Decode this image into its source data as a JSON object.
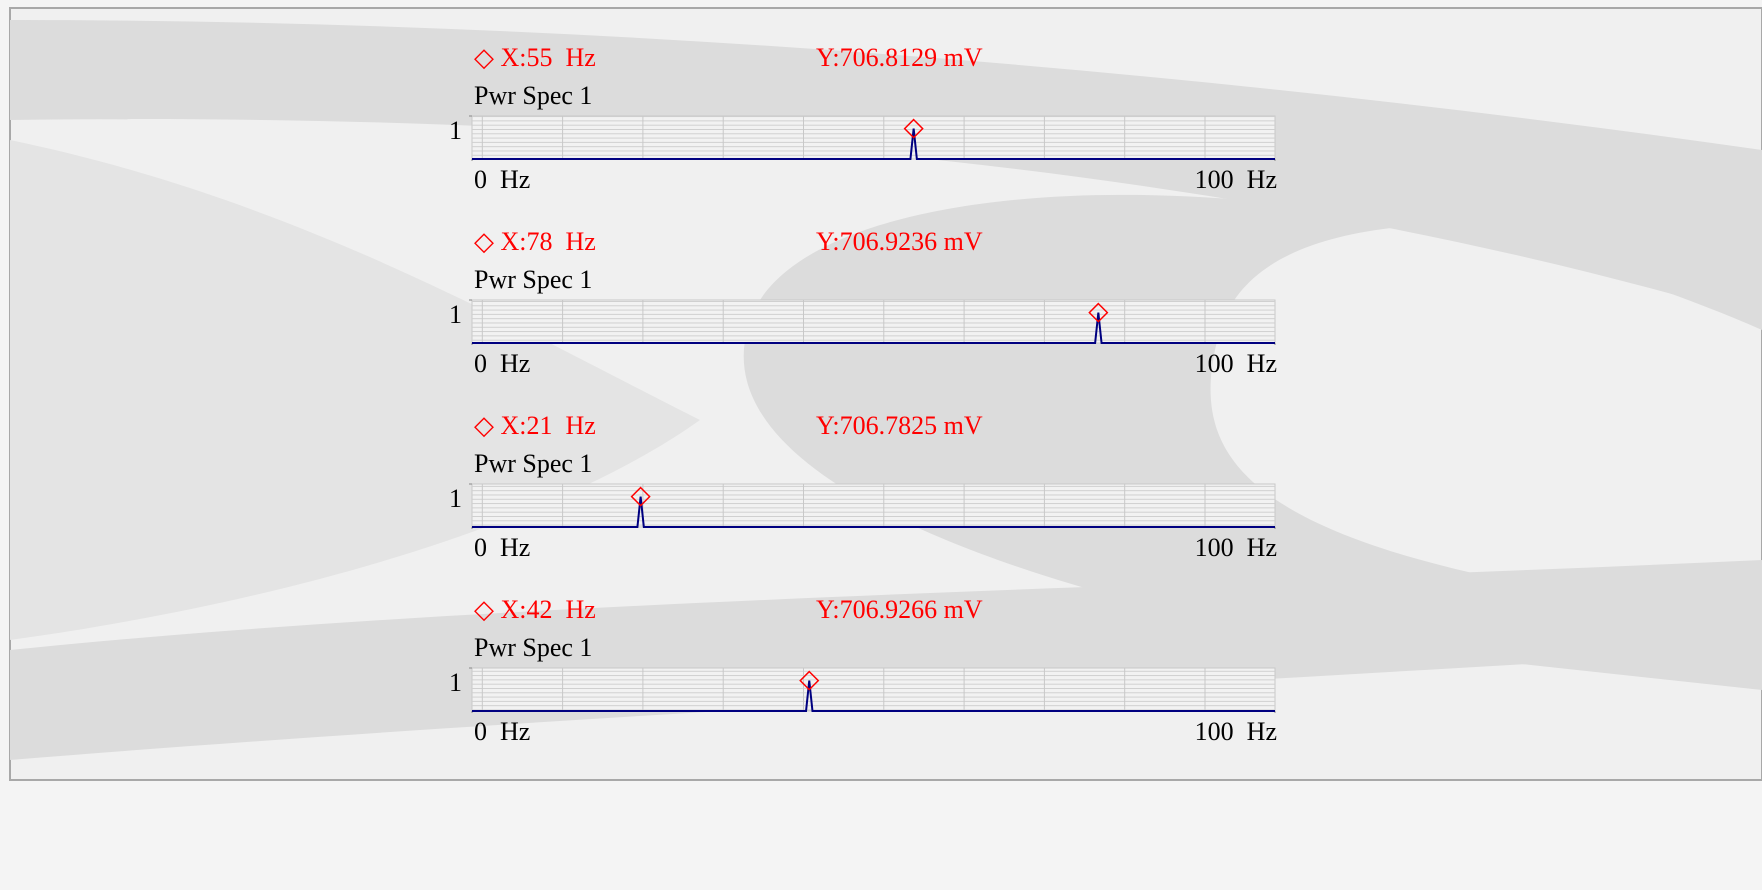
{
  "chart_data": [
    {
      "type": "line",
      "annotations": [
        "◇ X:55  Hz",
        "Y:706.8129 mV"
      ],
      "title": "Pwr Spec 1",
      "x": [
        0,
        54.6,
        55,
        55.4,
        100
      ],
      "values": [
        0,
        0,
        0.7068129,
        0,
        0
      ],
      "color": "#000080",
      "marker_color": "#ff0000",
      "xlim": [
        0,
        100
      ],
      "ylim": [
        0,
        1
      ],
      "xticks": [
        {
          "value": 0,
          "label": "0  Hz"
        },
        {
          "value": 100,
          "label": "100  Hz"
        }
      ],
      "yticks": [
        1
      ],
      "grid": true
    },
    {
      "type": "line",
      "annotations": [
        "◇ X:78  Hz",
        "Y:706.9236 mV"
      ],
      "title": "Pwr Spec 1",
      "x": [
        0,
        77.6,
        78,
        78.4,
        100
      ],
      "values": [
        0,
        0,
        0.7069236,
        0,
        0
      ],
      "color": "#000080",
      "marker_color": "#ff0000",
      "xlim": [
        0,
        100
      ],
      "ylim": [
        0,
        1
      ],
      "xticks": [
        {
          "value": 0,
          "label": "0  Hz"
        },
        {
          "value": 100,
          "label": "100  Hz"
        }
      ],
      "yticks": [
        1
      ],
      "grid": true
    },
    {
      "type": "line",
      "annotations": [
        "◇ X:21  Hz",
        "Y:706.7825 mV"
      ],
      "title": "Pwr Spec 1",
      "x": [
        0,
        20.6,
        21,
        21.4,
        100
      ],
      "values": [
        0,
        0,
        0.7067825,
        0,
        0
      ],
      "color": "#000080",
      "marker_color": "#ff0000",
      "xlim": [
        0,
        100
      ],
      "ylim": [
        0,
        1
      ],
      "xticks": [
        {
          "value": 0,
          "label": "0  Hz"
        },
        {
          "value": 100,
          "label": "100  Hz"
        }
      ],
      "yticks": [
        1
      ],
      "grid": true
    },
    {
      "type": "line",
      "annotations": [
        "◇ X:42  Hz",
        "Y:706.9266 mV"
      ],
      "title": "Pwr Spec 1",
      "x": [
        0,
        41.6,
        42,
        42.4,
        100
      ],
      "values": [
        0,
        0,
        0.7069266,
        0,
        0
      ],
      "color": "#000080",
      "marker_color": "#ff0000",
      "xlim": [
        0,
        100
      ],
      "ylim": [
        0,
        1
      ],
      "xticks": [
        {
          "value": 0,
          "label": "0  Hz"
        },
        {
          "value": 100,
          "label": "100  Hz"
        }
      ],
      "yticks": [
        1
      ],
      "grid": true
    }
  ]
}
